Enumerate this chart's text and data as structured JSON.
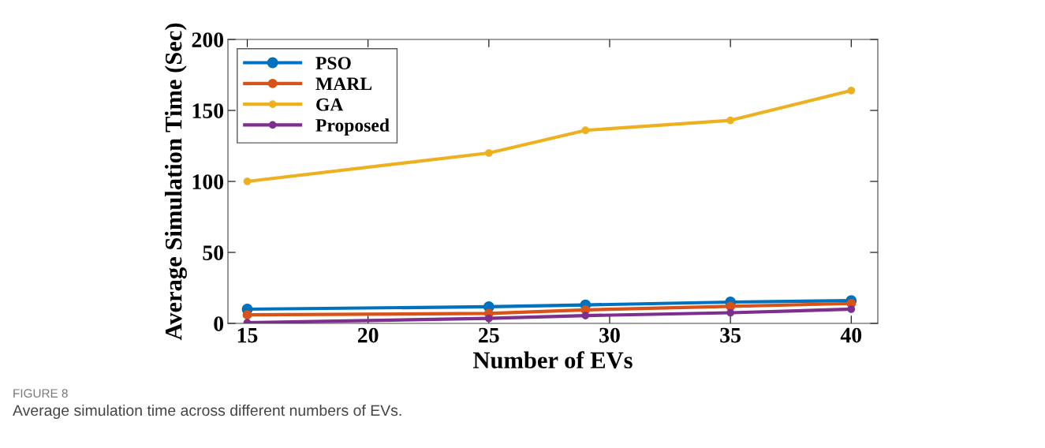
{
  "chart_data": {
    "type": "line",
    "xlabel": "Number of EVs",
    "ylabel": "Average Simulation Time (Sec)",
    "x": [
      15,
      25,
      29,
      35,
      40
    ],
    "series": [
      {
        "name": "PSO",
        "color": "#0072bd",
        "values": [
          10,
          11.7,
          13,
          15,
          16
        ]
      },
      {
        "name": "MARL",
        "color": "#d95319",
        "values": [
          6,
          7,
          9.5,
          12,
          14
        ]
      },
      {
        "name": "GA",
        "color": "#edb120",
        "values": [
          100,
          120,
          136,
          143,
          164
        ]
      },
      {
        "name": "Proposed",
        "color": "#7e2f8e",
        "values": [
          0.5,
          3.5,
          5.5,
          7.5,
          10
        ]
      }
    ],
    "xlim": [
      14.2,
      41.1
    ],
    "xticks": [
      15,
      20,
      25,
      30,
      35,
      40
    ],
    "ylim": [
      0,
      200
    ],
    "yticks": [
      0,
      50,
      100,
      150,
      200
    ],
    "grid": false,
    "legend": "top left",
    "marker": "circle",
    "line_style": "solid",
    "annotations": [
      "FIGURE 8",
      "Average simulation time across different numbers of EVs."
    ]
  }
}
